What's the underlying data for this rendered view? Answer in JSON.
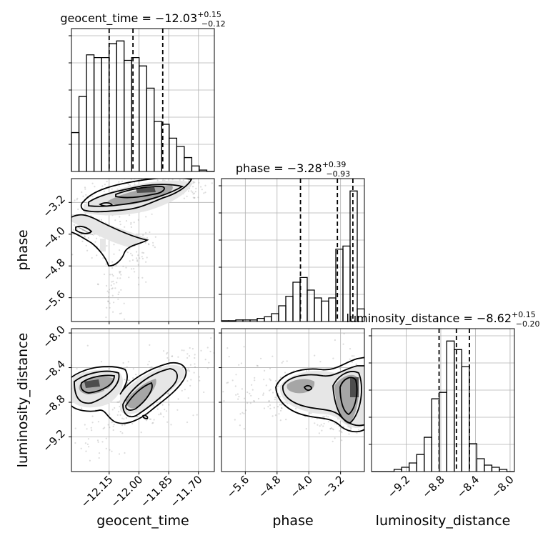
{
  "chart_data": {
    "type": "corner",
    "parameters": [
      "geocent_time",
      "phase",
      "luminosity_distance"
    ],
    "titles": [
      {
        "parameter": "geocent_time",
        "prefix": "geocent_time = ",
        "median": "−12.03",
        "plus": "+0.15",
        "minus": "−0.12"
      },
      {
        "parameter": "phase",
        "prefix": "phase = ",
        "median": "−3.28",
        "plus": "+0.39",
        "minus": "−0.93"
      },
      {
        "parameter": "luminosity_distance",
        "prefix": "luminosity_distance = ",
        "median": "−8.62",
        "plus": "+0.15",
        "minus": "−0.20"
      }
    ],
    "axis_labels": {
      "x": [
        "geocent_time",
        "phase",
        "luminosity_distance"
      ],
      "y": [
        "phase",
        "luminosity_distance"
      ]
    },
    "ranges": {
      "geocent_time": [
        -12.34,
        -11.62
      ],
      "phase": [
        -6.2,
        -2.6
      ],
      "luminosity_distance": [
        -9.6,
        -7.95
      ]
    },
    "ticks": {
      "geocent_time": {
        "values": [
          -12.15,
          -12.0,
          -11.85,
          -11.7
        ],
        "labels": [
          "−12.15",
          "−12.00",
          "−11.85",
          "−11.70"
        ]
      },
      "phase": {
        "values": [
          -5.6,
          -4.8,
          -4.0,
          -3.2
        ],
        "labels": [
          "−5.6",
          "−4.8",
          "−4.0",
          "−3.2"
        ]
      },
      "luminosity_distance": {
        "values": [
          -9.2,
          -8.8,
          -8.4,
          -8.0
        ],
        "labels": [
          "−9.2",
          "−8.8",
          "−8.4",
          "−8.0"
        ]
      }
    },
    "histograms": {
      "geocent_time": [
        0.14,
        0.27,
        0.42,
        0.41,
        0.41,
        0.46,
        0.47,
        0.4,
        0.41,
        0.38,
        0.3,
        0.18,
        0.17,
        0.12,
        0.09,
        0.05,
        0.02,
        0.005,
        0.0
      ],
      "phase": [
        0.005,
        0.005,
        0.01,
        0.01,
        0.01,
        0.02,
        0.03,
        0.05,
        0.1,
        0.16,
        0.25,
        0.28,
        0.2,
        0.15,
        0.13,
        0.15,
        0.46,
        0.48,
        0.83,
        0.08
      ],
      "luminosity_distance": [
        0.0,
        0.0,
        0.0,
        0.01,
        0.02,
        0.04,
        0.08,
        0.16,
        0.34,
        0.37,
        0.61,
        0.57,
        0.49,
        0.13,
        0.06,
        0.03,
        0.02,
        0.01,
        0.0
      ]
    },
    "quantiles": {
      "geocent_time": [
        -12.15,
        -12.03,
        -11.88
      ],
      "phase": [
        -4.21,
        -3.28,
        -2.89
      ],
      "luminosity_distance": [
        -8.82,
        -8.62,
        -8.47
      ]
    },
    "grid": true,
    "scatter_color": "#9a9a9a",
    "contour_color": "#000000"
  }
}
